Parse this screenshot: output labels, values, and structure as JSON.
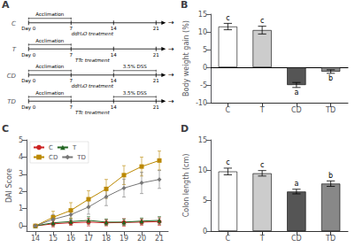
{
  "chart_data": [
    {
      "type": "timeline",
      "title": "A",
      "categories": [
        "C",
        "T",
        "CD",
        "TD"
      ],
      "xlim": [
        -1.5,
        23
      ],
      "xticks": [
        {
          "value": 0,
          "label": "Day 0"
        },
        7,
        14,
        21
      ],
      "annotations": [
        {
          "text": "Acclimation",
          "category": "C",
          "x": [
            0,
            7
          ],
          "position": "above"
        },
        {
          "text": "ddH₂O treatment",
          "category": "C",
          "position": "below"
        },
        {
          "text": "→",
          "category": "C",
          "position": "end"
        },
        {
          "text": "Acclimation",
          "category": "T",
          "x": [
            0,
            7
          ],
          "position": "above"
        },
        {
          "text": "TTc treatment",
          "category": "T",
          "position": "below"
        },
        {
          "text": "→",
          "category": "T",
          "position": "end"
        },
        {
          "text": "Acclimation",
          "category": "CD",
          "x": [
            0,
            7
          ],
          "position": "above"
        },
        {
          "text": "3.5% DSS",
          "category": "CD",
          "x": [
            14,
            21
          ],
          "position": "above"
        },
        {
          "text": "ddH₂O treatment",
          "category": "CD",
          "position": "below"
        },
        {
          "text": "→",
          "category": "CD",
          "position": "end"
        },
        {
          "text": "Acclimation",
          "category": "TD",
          "x": [
            0,
            7
          ],
          "position": "above"
        },
        {
          "text": "3.5% DSS",
          "category": "TD",
          "x": [
            14,
            21
          ],
          "position": "above"
        },
        {
          "text": "TTc treatment",
          "category": "TD",
          "position": "below"
        },
        {
          "text": "→",
          "category": "TD",
          "position": "end"
        }
      ]
    },
    {
      "type": "bar",
      "title": "B",
      "categories": [
        "C",
        "T",
        "CD",
        "TD"
      ],
      "values": [
        11.5,
        10.5,
        -5.0,
        -1.2
      ],
      "errors": [
        0.9,
        1.1,
        0.7,
        0.5
      ],
      "colors": [
        "white",
        "#cccccc",
        "#555555",
        "#888888"
      ],
      "letters": [
        "c",
        "c",
        "a",
        "b"
      ],
      "ylabel": "Body weight gain (%)",
      "ylim": [
        -10,
        15
      ],
      "yticks": [
        -10,
        -5,
        0,
        5,
        10,
        15
      ],
      "grid": false
    },
    {
      "type": "line",
      "title": "C",
      "ylabel": "DAI Score",
      "xlim": [
        13.5,
        21.5
      ],
      "ylim": [
        -0.3,
        5
      ],
      "xticks": [
        14,
        15,
        16,
        17,
        18,
        19,
        20,
        21
      ],
      "yticks": [
        0,
        1,
        2,
        3,
        4,
        5
      ],
      "x": [
        14,
        15,
        16,
        17,
        18,
        19,
        20,
        21
      ],
      "series": [
        {
          "name": "C",
          "color": "#cc2222",
          "marker": "circle",
          "values": [
            0.0,
            0.12,
            0.18,
            0.22,
            0.18,
            0.2,
            0.22,
            0.25
          ],
          "errors": [
            0.0,
            0.18,
            0.15,
            0.22,
            0.18,
            0.22,
            0.18,
            0.22
          ]
        },
        {
          "name": "T",
          "color": "#226622",
          "marker": "triangle",
          "values": [
            0.0,
            0.18,
            0.25,
            0.32,
            0.22,
            0.22,
            0.28,
            0.32
          ],
          "errors": [
            0.0,
            0.18,
            0.18,
            0.22,
            0.18,
            0.18,
            0.18,
            0.22
          ]
        },
        {
          "name": "CD",
          "color": "#bb8800",
          "marker": "square",
          "values": [
            0.0,
            0.5,
            0.9,
            1.55,
            2.15,
            2.95,
            3.45,
            3.8
          ],
          "errors": [
            0.0,
            0.35,
            0.45,
            0.5,
            0.55,
            0.55,
            0.55,
            0.55
          ]
        },
        {
          "name": "TD",
          "color": "#777777",
          "marker": "diamond",
          "values": [
            0.0,
            0.38,
            0.65,
            1.1,
            1.7,
            2.2,
            2.5,
            2.7
          ],
          "errors": [
            0.0,
            0.28,
            0.32,
            0.42,
            0.52,
            0.52,
            0.62,
            0.52
          ]
        }
      ],
      "legend": "upper left",
      "grid": false
    },
    {
      "type": "bar",
      "title": "D",
      "categories": [
        "C",
        "T",
        "CD",
        "TD"
      ],
      "values": [
        9.8,
        9.5,
        6.5,
        7.8
      ],
      "errors": [
        0.55,
        0.45,
        0.38,
        0.45
      ],
      "colors": [
        "white",
        "#cccccc",
        "#555555",
        "#888888"
      ],
      "letters": [
        "c",
        "c",
        "a",
        "b"
      ],
      "ylabel": "Colon length (cm)",
      "ylim": [
        0,
        15
      ],
      "yticks": [
        0,
        5,
        10,
        15
      ],
      "grid": false
    }
  ]
}
